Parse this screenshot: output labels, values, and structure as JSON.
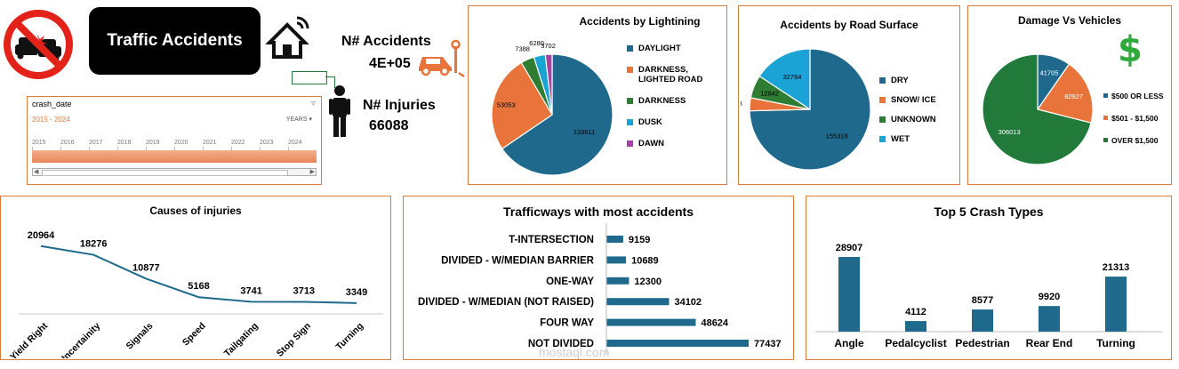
{
  "header": {
    "title": "Traffic Accidents",
    "kpis": {
      "accidents_label": "N# Accidents",
      "accidents_value": "4E+05",
      "injuries_label": "N# Injuries",
      "injuries_value": "66088"
    },
    "icons": [
      "no-car-crash-icon",
      "smart-home-icon",
      "car-crash-icon",
      "person-icon",
      "dollar-icon"
    ]
  },
  "slicer": {
    "field": "crash_date",
    "range": "2015 - 2024",
    "units": "YEARS ▾",
    "years": [
      "2015",
      "2016",
      "2017",
      "2018",
      "2019",
      "2020",
      "2021",
      "2022",
      "2023",
      "2024"
    ]
  },
  "colors": {
    "blue": "#1f6a8c",
    "orange": "#e8743b",
    "green": "#2e7d32",
    "cyan": "#1ca3d6",
    "purple": "#a642a6",
    "panel_border": "#e07b39",
    "darkgreen": "#217a3a"
  },
  "chart_data": [
    {
      "id": "lighting",
      "type": "pie",
      "title": "Accidents by Lightining",
      "slices": [
        {
          "label": "DAYLIGHT",
          "value": 133611,
          "color": "#1f6a8c"
        },
        {
          "label": "DARKNESS, LIGHTED ROAD",
          "value": 53053,
          "color": "#e8743b"
        },
        {
          "label": "DARKNESS",
          "value": 7388,
          "color": "#2e7d32"
        },
        {
          "label": "DUSK",
          "value": 6280,
          "color": "#1ca3d6"
        },
        {
          "label": "DAWN",
          "value": 3702,
          "color": "#a642a6"
        }
      ]
    },
    {
      "id": "surface",
      "type": "pie",
      "title": "Accidents by Road Surface",
      "slices": [
        {
          "label": "DRY",
          "value": 155318,
          "color": "#1f6a8c"
        },
        {
          "label": "SNOW/ ICE",
          "value": 7268,
          "color": "#e8743b"
        },
        {
          "label": "UNKNOWN",
          "value": 12842,
          "color": "#2e7d32"
        },
        {
          "label": "WET",
          "value": 32764,
          "color": "#1ca3d6"
        }
      ]
    },
    {
      "id": "damage",
      "type": "pie",
      "title": "Damage Vs Vehicles",
      "slices": [
        {
          "label": "$500 OR LESS",
          "value": 41705,
          "color": "#1f6a8c"
        },
        {
          "label": "$501 - $1,500",
          "value": 82927,
          "color": "#e8743b"
        },
        {
          "label": "OVER $1,500",
          "value": 306013,
          "color": "#217a3a"
        }
      ]
    },
    {
      "id": "causes",
      "type": "line",
      "title": "Causes of injuries",
      "categories": [
        "Yield Right",
        "Uncertainity",
        "Signals",
        "Speed",
        "Tailgating",
        "Stop Sign",
        "Turning"
      ],
      "values": [
        20964,
        18276,
        10877,
        5168,
        3741,
        3713,
        3349
      ],
      "color": "#1f6a8c"
    },
    {
      "id": "trafficways",
      "type": "bar",
      "orientation": "horizontal",
      "title": "Trafficways with most accidents",
      "categories": [
        "T-INTERSECTION",
        "DIVIDED - W/MEDIAN BARRIER",
        "ONE-WAY",
        "DIVIDED - W/MEDIAN (NOT RAISED)",
        "FOUR WAY",
        "NOT DIVIDED"
      ],
      "values": [
        9159,
        10689,
        12300,
        34102,
        48624,
        77437
      ],
      "color": "#1f6a8c"
    },
    {
      "id": "crashtypes",
      "type": "bar",
      "title": "Top 5 Crash Types",
      "categories": [
        "Angle",
        "Pedalcyclist",
        "Pedestrian",
        "Rear End",
        "Turning"
      ],
      "values": [
        28907,
        4112,
        8577,
        9920,
        21313
      ],
      "color": "#1f6a8c"
    }
  ],
  "watermark": {
    "text": "mostaql.com"
  }
}
